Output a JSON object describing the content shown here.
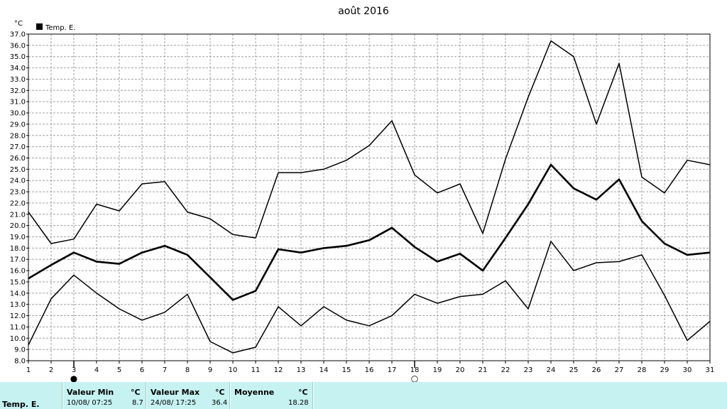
{
  "chart_data": {
    "type": "line",
    "title": "août 2016",
    "ylabel": "°C",
    "ylim": [
      8.0,
      37.0
    ],
    "ystep": 1.0,
    "x": [
      1,
      2,
      3,
      4,
      5,
      6,
      7,
      8,
      9,
      10,
      11,
      12,
      13,
      14,
      15,
      16,
      17,
      18,
      19,
      20,
      21,
      22,
      23,
      24,
      25,
      26,
      27,
      28,
      29,
      30,
      31
    ],
    "legend": [
      "Temp. E."
    ],
    "grid": true,
    "series": [
      {
        "role": "max",
        "values": [
          21.2,
          18.4,
          18.8,
          21.9,
          21.3,
          23.7,
          23.9,
          21.2,
          20.6,
          19.2,
          18.9,
          24.7,
          24.7,
          25.0,
          25.8,
          27.1,
          29.3,
          24.5,
          22.9,
          23.7,
          19.3,
          25.9,
          31.4,
          36.4,
          35.0,
          29.0,
          34.4,
          24.3,
          22.9,
          25.8,
          25.4
        ]
      },
      {
        "role": "mean",
        "values": [
          15.3,
          16.5,
          17.6,
          16.8,
          16.6,
          17.6,
          18.2,
          17.4,
          15.4,
          13.4,
          14.2,
          17.9,
          17.6,
          18.0,
          18.2,
          18.7,
          19.8,
          18.1,
          16.8,
          17.5,
          16.0,
          18.9,
          21.9,
          25.4,
          23.3,
          22.3,
          24.1,
          20.4,
          18.4,
          17.4,
          17.6
        ]
      },
      {
        "role": "min",
        "values": [
          9.4,
          13.5,
          15.6,
          14.0,
          12.6,
          11.6,
          12.3,
          13.9,
          9.7,
          8.7,
          9.2,
          12.8,
          11.1,
          12.8,
          11.6,
          11.1,
          12.0,
          13.9,
          13.1,
          13.7,
          13.9,
          15.1,
          12.6,
          18.6,
          16.0,
          16.7,
          16.8,
          17.4,
          13.8,
          9.8,
          11.5
        ]
      }
    ],
    "moon_markers": [
      {
        "day": 3,
        "symbol": "●"
      },
      {
        "day": 18,
        "symbol": "○"
      }
    ]
  },
  "stats": {
    "row_label": "Temp. E.",
    "min": {
      "header": "Valeur Min",
      "unit": "°C",
      "datetime": "10/08/  07:25",
      "value": "8.7"
    },
    "max": {
      "header": "Valeur Max",
      "unit": "°C",
      "datetime": "24/08/  17:25",
      "value": "36.4"
    },
    "avg": {
      "header": "Moyenne",
      "unit": "°C",
      "value": "18.28"
    }
  },
  "colors": {
    "panel_bg": "#c6f2f2",
    "grid": "#a0a0a0",
    "line": "#000000"
  }
}
